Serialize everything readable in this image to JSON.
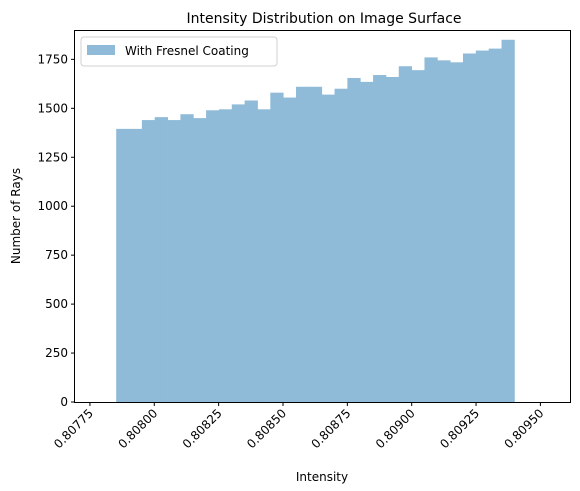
{
  "chart_data": {
    "type": "bar",
    "title": "Intensity Distribution on Image Surface",
    "xlabel": "Intensity",
    "ylabel": "Number of Rays",
    "xlim": [
      0.807692,
      0.809615
    ],
    "ylim": [
      0,
      1900
    ],
    "bin_start": 0.807852,
    "bin_width": 4.99e-05,
    "x_ticks": [
      0.80775,
      0.808,
      0.80825,
      0.8085,
      0.80875,
      0.809,
      0.80925,
      0.8095
    ],
    "x_tick_labels": [
      "0.80775",
      "0.80800",
      "0.80825",
      "0.80850",
      "0.80875",
      "0.80900",
      "0.80925",
      "0.80950"
    ],
    "y_ticks": [
      0,
      250,
      500,
      750,
      1000,
      1250,
      1500,
      1750
    ],
    "y_tick_labels": [
      "0",
      "250",
      "500",
      "750",
      "1000",
      "1250",
      "1500",
      "1750"
    ],
    "grid": false,
    "legend": {
      "position": "top-left"
    },
    "series": [
      {
        "name": "With Fresnel Coating",
        "color": "#8fbbd9",
        "values": [
          1395,
          1395,
          1440,
          1455,
          1440,
          1470,
          1450,
          1490,
          1495,
          1520,
          1540,
          1495,
          1580,
          1555,
          1610,
          1610,
          1570,
          1600,
          1655,
          1635,
          1670,
          1660,
          1715,
          1695,
          1760,
          1745,
          1735,
          1780,
          1795,
          1805,
          1850
        ]
      }
    ]
  }
}
